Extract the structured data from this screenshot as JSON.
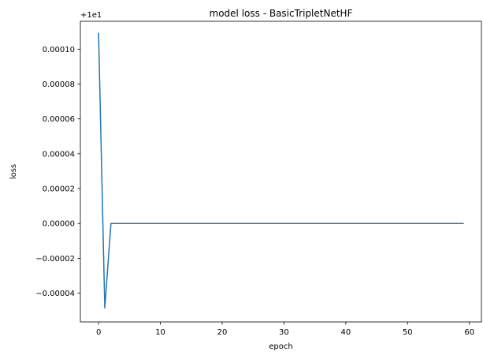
{
  "chart_data": {
    "type": "line",
    "title": "model loss - BasicTripletNetHF",
    "xlabel": "epoch",
    "ylabel": "loss",
    "y_offset_label": "+1e1",
    "xlim": [
      -2.95,
      61.95
    ],
    "ylim": [
      -5.65e-05,
      0.000116
    ],
    "x_ticks": [
      0,
      10,
      20,
      30,
      40,
      50,
      60
    ],
    "x_tick_labels": [
      "0",
      "10",
      "20",
      "30",
      "40",
      "50",
      "60"
    ],
    "y_ticks": [
      -4e-05,
      -2e-05,
      0.0,
      2e-05,
      4e-05,
      6e-05,
      8e-05,
      0.0001
    ],
    "y_tick_labels": [
      "−0.00004",
      "−0.00002",
      "0.00000",
      "0.00002",
      "0.00004",
      "0.00006",
      "0.00008",
      "0.00010"
    ],
    "grid": false,
    "series": [
      {
        "color": "#1f77b4",
        "x": [
          0,
          1,
          2,
          3,
          4,
          5,
          6,
          7,
          8,
          9,
          10,
          11,
          12,
          13,
          14,
          15,
          16,
          17,
          18,
          19,
          20,
          21,
          22,
          23,
          24,
          25,
          26,
          27,
          28,
          29,
          30,
          31,
          32,
          33,
          34,
          35,
          36,
          37,
          38,
          39,
          40,
          41,
          42,
          43,
          44,
          45,
          46,
          47,
          48,
          49,
          50,
          51,
          52,
          53,
          54,
          55,
          56,
          57,
          58,
          59
        ],
        "values": [
          0.000109,
          -4.85e-05,
          0.0,
          0.0,
          0.0,
          0.0,
          0.0,
          0.0,
          0.0,
          0.0,
          0.0,
          0.0,
          0.0,
          0.0,
          0.0,
          0.0,
          0.0,
          0.0,
          0.0,
          0.0,
          0.0,
          0.0,
          0.0,
          0.0,
          0.0,
          0.0,
          0.0,
          0.0,
          0.0,
          0.0,
          0.0,
          0.0,
          0.0,
          0.0,
          0.0,
          0.0,
          0.0,
          0.0,
          0.0,
          0.0,
          0.0,
          0.0,
          0.0,
          0.0,
          0.0,
          0.0,
          0.0,
          0.0,
          0.0,
          0.0,
          0.0,
          0.0,
          0.0,
          0.0,
          0.0,
          0.0,
          0.0,
          0.0,
          0.0,
          0.0
        ]
      }
    ]
  }
}
